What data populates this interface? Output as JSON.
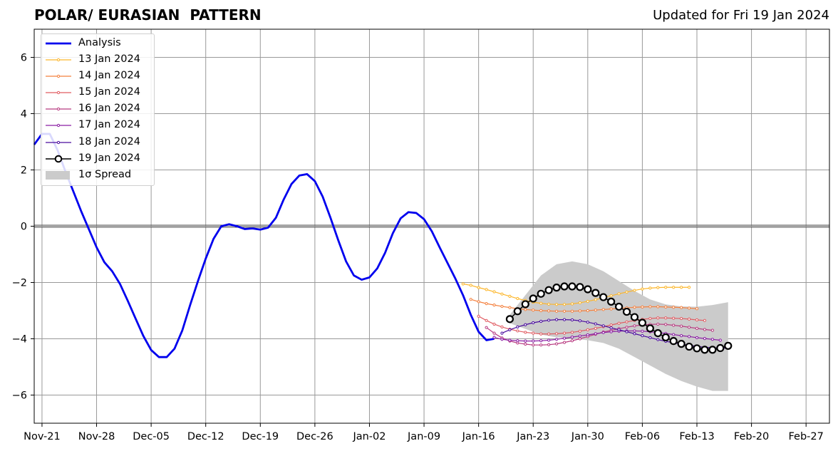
{
  "title": "POLAR/ EURASIAN  PATTERN",
  "updated": "Updated for Fri 19 Jan 2024",
  "chart_data": {
    "type": "line",
    "title": "POLAR/ EURASIAN  PATTERN",
    "subtitle": "Updated for Fri 19 Jan 2024",
    "xlabel": "",
    "ylabel": "",
    "x_ticks": [
      "Nov-21",
      "Nov-28",
      "Dec-05",
      "Dec-12",
      "Dec-19",
      "Dec-26",
      "Jan-02",
      "Jan-09",
      "Jan-16",
      "Jan-23",
      "Jan-30",
      "Feb-06",
      "Feb-13",
      "Feb-20",
      "Feb-27"
    ],
    "y_ticks": [
      "6",
      "4",
      "2",
      "0",
      "−2",
      "−4",
      "−6"
    ],
    "xlim": [
      "2023-11-20",
      "2024-03-01"
    ],
    "ylim": [
      -7,
      7
    ],
    "grid": true,
    "legend_position": "top-left",
    "zero_line": true,
    "series": [
      {
        "name": "Analysis",
        "color": "#0000ee",
        "style": "line",
        "x": [
          "2023-11-20",
          "2023-11-21",
          "2023-11-22",
          "2023-11-23",
          "2023-11-24",
          "2023-11-25",
          "2023-11-26",
          "2023-11-27",
          "2023-11-28",
          "2023-11-29",
          "2023-11-30",
          "2023-12-01",
          "2023-12-02",
          "2023-12-03",
          "2023-12-04",
          "2023-12-05",
          "2023-12-06",
          "2023-12-07",
          "2023-12-08",
          "2023-12-09",
          "2023-12-10",
          "2023-12-11",
          "2023-12-12",
          "2023-12-13",
          "2023-12-14",
          "2023-12-15",
          "2023-12-16",
          "2023-12-17",
          "2023-12-18",
          "2023-12-19",
          "2023-12-20",
          "2023-12-21",
          "2023-12-22",
          "2023-12-23",
          "2023-12-24",
          "2023-12-25",
          "2023-12-26",
          "2023-12-27",
          "2023-12-28",
          "2023-12-29",
          "2023-12-30",
          "2023-12-31",
          "2024-01-01",
          "2024-01-02",
          "2024-01-03",
          "2024-01-04",
          "2024-01-05",
          "2024-01-06",
          "2024-01-07",
          "2024-01-08",
          "2024-01-09",
          "2024-01-10",
          "2024-01-11",
          "2024-01-12",
          "2024-01-13",
          "2024-01-14",
          "2024-01-15",
          "2024-01-16",
          "2024-01-17",
          "2024-01-18"
        ],
        "y": [
          2.9,
          3.28,
          3.28,
          2.7,
          1.95,
          1.25,
          0.55,
          -0.1,
          -0.75,
          -1.28,
          -1.6,
          -2.05,
          -2.65,
          -3.28,
          -3.9,
          -4.4,
          -4.65,
          -4.65,
          -4.35,
          -3.7,
          -2.8,
          -1.95,
          -1.15,
          -0.45,
          0.0,
          0.07,
          0.0,
          -0.1,
          -0.08,
          -0.12,
          -0.05,
          0.3,
          0.95,
          1.5,
          1.8,
          1.85,
          1.6,
          1.05,
          0.3,
          -0.5,
          -1.25,
          -1.75,
          -1.9,
          -1.82,
          -1.5,
          -0.95,
          -0.25,
          0.28,
          0.5,
          0.47,
          0.25,
          -0.18,
          -0.75,
          -1.3,
          -1.85,
          -2.45,
          -3.15,
          -3.75,
          -4.05,
          -4.0
        ]
      },
      {
        "name": "13 Jan 2024",
        "color": "#fcb62a",
        "style": "markers-small",
        "x": [
          "2024-01-14",
          "2024-01-15",
          "2024-01-16",
          "2024-01-17",
          "2024-01-18",
          "2024-01-19",
          "2024-01-20",
          "2024-01-21",
          "2024-01-22",
          "2024-01-23",
          "2024-01-24",
          "2024-01-25",
          "2024-01-26",
          "2024-01-27",
          "2024-01-28",
          "2024-01-29",
          "2024-01-30",
          "2024-01-31",
          "2024-02-01",
          "2024-02-02",
          "2024-02-03",
          "2024-02-04",
          "2024-02-05",
          "2024-02-06",
          "2024-02-07",
          "2024-02-08",
          "2024-02-09",
          "2024-02-10",
          "2024-02-11",
          "2024-02-12"
        ],
        "y": [
          -2.05,
          -2.1,
          -2.18,
          -2.25,
          -2.33,
          -2.41,
          -2.49,
          -2.57,
          -2.64,
          -2.7,
          -2.74,
          -2.77,
          -2.78,
          -2.78,
          -2.76,
          -2.72,
          -2.67,
          -2.61,
          -2.54,
          -2.47,
          -2.4,
          -2.34,
          -2.28,
          -2.23,
          -2.2,
          -2.18,
          -2.17,
          -2.17,
          -2.17,
          -2.17
        ]
      },
      {
        "name": "14 Jan 2024",
        "color": "#f4813f",
        "style": "markers-small",
        "x": [
          "2024-01-15",
          "2024-01-16",
          "2024-01-17",
          "2024-01-18",
          "2024-01-19",
          "2024-01-20",
          "2024-01-21",
          "2024-01-22",
          "2024-01-23",
          "2024-01-24",
          "2024-01-25",
          "2024-01-26",
          "2024-01-27",
          "2024-01-28",
          "2024-01-29",
          "2024-01-30",
          "2024-01-31",
          "2024-02-01",
          "2024-02-02",
          "2024-02-03",
          "2024-02-04",
          "2024-02-05",
          "2024-02-06",
          "2024-02-07",
          "2024-02-08",
          "2024-02-09",
          "2024-02-10",
          "2024-02-11",
          "2024-02-12",
          "2024-02-13"
        ],
        "y": [
          -2.6,
          -2.68,
          -2.75,
          -2.8,
          -2.85,
          -2.89,
          -2.93,
          -2.96,
          -2.98,
          -3.0,
          -3.01,
          -3.02,
          -3.02,
          -3.02,
          -3.01,
          -3.0,
          -2.98,
          -2.96,
          -2.94,
          -2.92,
          -2.9,
          -2.88,
          -2.87,
          -2.86,
          -2.86,
          -2.87,
          -2.88,
          -2.89,
          -2.91,
          -2.93
        ]
      },
      {
        "name": "15 Jan 2024",
        "color": "#e15c62",
        "style": "markers-small",
        "x": [
          "2024-01-16",
          "2024-01-17",
          "2024-01-18",
          "2024-01-19",
          "2024-01-20",
          "2024-01-21",
          "2024-01-22",
          "2024-01-23",
          "2024-01-24",
          "2024-01-25",
          "2024-01-26",
          "2024-01-27",
          "2024-01-28",
          "2024-01-29",
          "2024-01-30",
          "2024-01-31",
          "2024-02-01",
          "2024-02-02",
          "2024-02-03",
          "2024-02-04",
          "2024-02-05",
          "2024-02-06",
          "2024-02-07",
          "2024-02-08",
          "2024-02-09",
          "2024-02-10",
          "2024-02-11",
          "2024-02-12",
          "2024-02-13",
          "2024-02-14"
        ],
        "y": [
          -3.2,
          -3.35,
          -3.48,
          -3.58,
          -3.66,
          -3.72,
          -3.77,
          -3.8,
          -3.83,
          -3.83,
          -3.82,
          -3.8,
          -3.77,
          -3.73,
          -3.68,
          -3.63,
          -3.57,
          -3.51,
          -3.45,
          -3.4,
          -3.35,
          -3.31,
          -3.28,
          -3.26,
          -3.26,
          -3.27,
          -3.28,
          -3.3,
          -3.33,
          -3.35
        ]
      },
      {
        "name": "16 Jan 2024",
        "color": "#b83a80",
        "style": "markers-small",
        "x": [
          "2024-01-17",
          "2024-01-18",
          "2024-01-19",
          "2024-01-20",
          "2024-01-21",
          "2024-01-22",
          "2024-01-23",
          "2024-01-24",
          "2024-01-25",
          "2024-01-26",
          "2024-01-27",
          "2024-01-28",
          "2024-01-29",
          "2024-01-30",
          "2024-01-31",
          "2024-02-01",
          "2024-02-02",
          "2024-02-03",
          "2024-02-04",
          "2024-02-05",
          "2024-02-06",
          "2024-02-07",
          "2024-02-08",
          "2024-02-09",
          "2024-02-10",
          "2024-02-11",
          "2024-02-12",
          "2024-02-13",
          "2024-02-14",
          "2024-02-15"
        ],
        "y": [
          -3.6,
          -3.8,
          -3.97,
          -4.08,
          -4.15,
          -4.19,
          -4.22,
          -4.22,
          -4.21,
          -4.18,
          -4.13,
          -4.07,
          -4.0,
          -3.92,
          -3.84,
          -3.76,
          -3.7,
          -3.64,
          -3.59,
          -3.54,
          -3.51,
          -3.49,
          -3.48,
          -3.49,
          -3.52,
          -3.55,
          -3.59,
          -3.63,
          -3.67,
          -3.7
        ]
      },
      {
        "name": "17 Jan 2024",
        "color": "#8a1da3",
        "style": "markers-small",
        "x": [
          "2024-01-18",
          "2024-01-19",
          "2024-01-20",
          "2024-01-21",
          "2024-01-22",
          "2024-01-23",
          "2024-01-24",
          "2024-01-25",
          "2024-01-26",
          "2024-01-27",
          "2024-01-28",
          "2024-01-29",
          "2024-01-30",
          "2024-01-31",
          "2024-02-01",
          "2024-02-02",
          "2024-02-03",
          "2024-02-04",
          "2024-02-05",
          "2024-02-06",
          "2024-02-07",
          "2024-02-08",
          "2024-02-09",
          "2024-02-10",
          "2024-02-11",
          "2024-02-12",
          "2024-02-13",
          "2024-02-14",
          "2024-02-15",
          "2024-02-16"
        ],
        "y": [
          -3.95,
          -4.02,
          -4.05,
          -4.07,
          -4.08,
          -4.08,
          -4.07,
          -4.05,
          -4.02,
          -3.98,
          -3.94,
          -3.9,
          -3.86,
          -3.82,
          -3.78,
          -3.75,
          -3.73,
          -3.72,
          -3.72,
          -3.73,
          -3.75,
          -3.78,
          -3.81,
          -3.85,
          -3.89,
          -3.92,
          -3.96,
          -3.99,
          -4.02,
          -4.05
        ]
      },
      {
        "name": "18 Jan 2024",
        "color": "#4a0c9e",
        "style": "markers-small",
        "x": [
          "2024-01-19",
          "2024-01-20",
          "2024-01-21",
          "2024-01-22",
          "2024-01-23",
          "2024-01-24",
          "2024-01-25",
          "2024-01-26",
          "2024-01-27",
          "2024-01-28",
          "2024-01-29",
          "2024-01-30",
          "2024-01-31",
          "2024-02-01",
          "2024-02-02",
          "2024-02-03",
          "2024-02-04",
          "2024-02-05",
          "2024-02-06",
          "2024-02-07",
          "2024-02-08",
          "2024-02-09",
          "2024-02-10",
          "2024-02-11",
          "2024-02-12",
          "2024-02-13",
          "2024-02-14",
          "2024-02-15",
          "2024-02-16",
          "2024-02-17"
        ],
        "y": [
          -3.8,
          -3.68,
          -3.58,
          -3.5,
          -3.43,
          -3.38,
          -3.34,
          -3.32,
          -3.32,
          -3.33,
          -3.36,
          -3.41,
          -3.47,
          -3.54,
          -3.61,
          -3.68,
          -3.75,
          -3.82,
          -3.89,
          -3.96,
          -4.03,
          -4.09,
          -4.14,
          -4.19,
          -4.23,
          -4.27,
          -4.3,
          -4.32,
          -4.33,
          -4.33
        ]
      },
      {
        "name": "19 Jan 2024",
        "color": "#000000",
        "style": "markers-large",
        "x": [
          "2024-01-20",
          "2024-01-21",
          "2024-01-22",
          "2024-01-23",
          "2024-01-24",
          "2024-01-25",
          "2024-01-26",
          "2024-01-27",
          "2024-01-28",
          "2024-01-29",
          "2024-01-30",
          "2024-01-31",
          "2024-02-01",
          "2024-02-02",
          "2024-02-03",
          "2024-02-04",
          "2024-02-05",
          "2024-02-06",
          "2024-02-07",
          "2024-02-08",
          "2024-02-09",
          "2024-02-10",
          "2024-02-11",
          "2024-02-12",
          "2024-02-13",
          "2024-02-14",
          "2024-02-15",
          "2024-02-16",
          "2024-02-17"
        ],
        "y": [
          -3.3,
          -3.02,
          -2.77,
          -2.57,
          -2.4,
          -2.27,
          -2.18,
          -2.14,
          -2.14,
          -2.16,
          -2.24,
          -2.37,
          -2.52,
          -2.68,
          -2.86,
          -3.04,
          -3.23,
          -3.43,
          -3.63,
          -3.8,
          -3.95,
          -4.08,
          -4.18,
          -4.28,
          -4.34,
          -4.39,
          -4.39,
          -4.33,
          -4.25
        ]
      }
    ],
    "spread": {
      "name": "1σ Spread",
      "color": "#cbcbcb",
      "x": [
        "2024-01-20",
        "2024-01-22",
        "2024-01-24",
        "2024-01-26",
        "2024-01-28",
        "2024-01-30",
        "2024-02-01",
        "2024-02-03",
        "2024-02-05",
        "2024-02-07",
        "2024-02-09",
        "2024-02-11",
        "2024-02-13",
        "2024-02-15",
        "2024-02-17"
      ],
      "upper": [
        -3.15,
        -2.45,
        -1.75,
        -1.35,
        -1.25,
        -1.35,
        -1.6,
        -1.95,
        -2.3,
        -2.6,
        -2.78,
        -2.85,
        -2.86,
        -2.8,
        -2.7
      ],
      "lower": [
        -3.45,
        -3.65,
        -3.85,
        -3.95,
        -4.0,
        -4.05,
        -4.15,
        -4.35,
        -4.65,
        -4.95,
        -5.25,
        -5.5,
        -5.7,
        -5.85,
        -5.85
      ]
    }
  }
}
